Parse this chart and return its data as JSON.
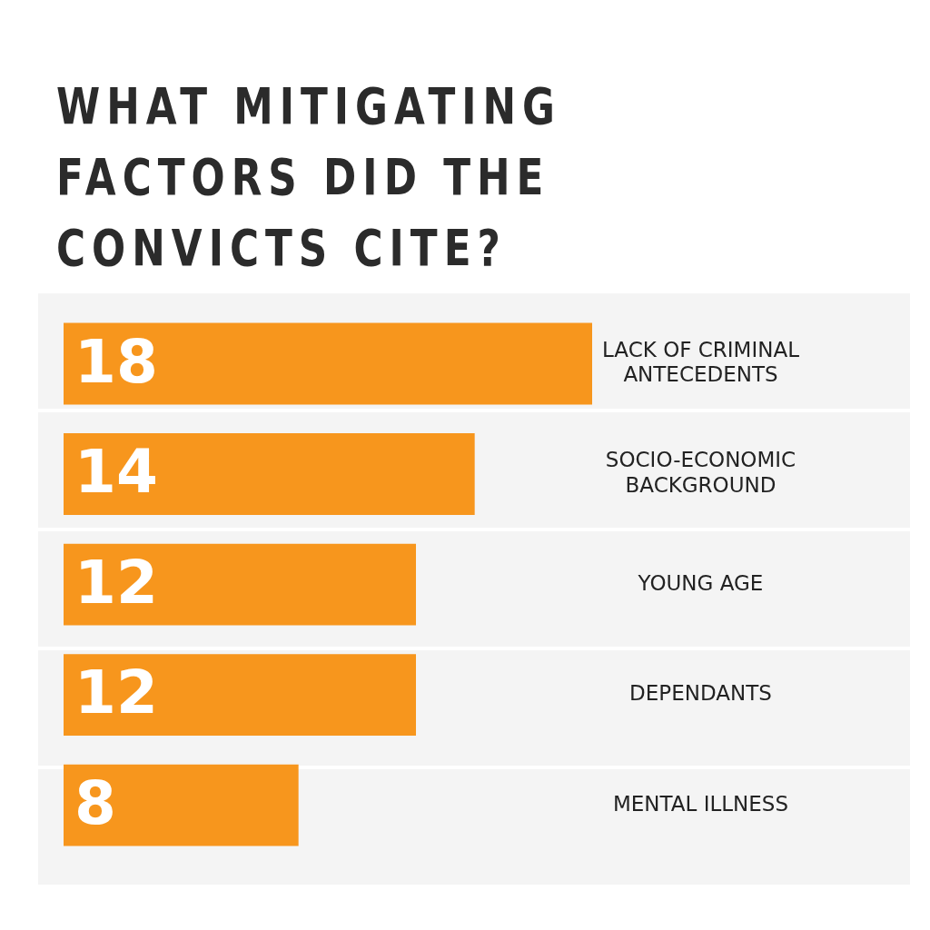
{
  "chart_data": {
    "type": "bar",
    "orientation": "horizontal",
    "title": "WHAT MITIGATING FACTORS DID THE CONVICTS CITE?",
    "categories": [
      "LACK OF CRIMINAL ANTECEDENTS",
      "SOCIO-ECONOMIC BACKGROUND",
      "YOUNG AGE",
      "DEPENDANTS",
      "MENTAL ILLNESS"
    ],
    "values": [
      18,
      14,
      12,
      12,
      8
    ],
    "color": "#f7961d",
    "data_labels": true,
    "grid": false,
    "legend": false,
    "tick_labels": "y"
  }
}
